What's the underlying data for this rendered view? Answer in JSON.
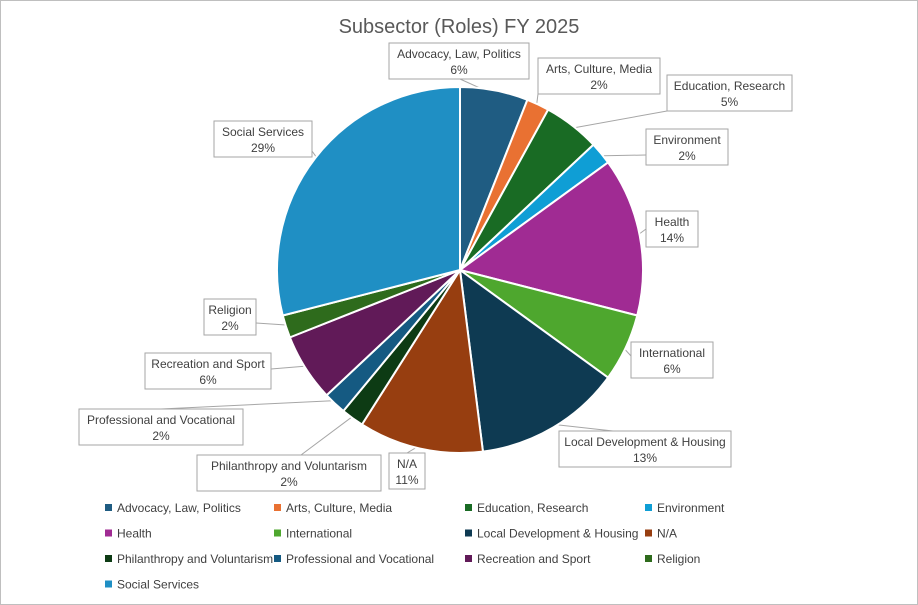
{
  "chart_data": {
    "type": "pie",
    "title": "Subsector (Roles) FY 2025",
    "legend_position": "bottom",
    "slices": [
      {
        "label": "Advocacy, Law, Politics",
        "value": 6,
        "value_label": "6%",
        "color": "#1f5c82"
      },
      {
        "label": "Arts, Culture, Media",
        "value": 2,
        "value_label": "2%",
        "color": "#e97132"
      },
      {
        "label": "Education, Research",
        "value": 5,
        "value_label": "5%",
        "color": "#196b24"
      },
      {
        "label": "Environment",
        "value": 2,
        "value_label": "2%",
        "color": "#0f9ed5"
      },
      {
        "label": "Health",
        "value": 14,
        "value_label": "14%",
        "color": "#a02b93"
      },
      {
        "label": "International",
        "value": 6,
        "value_label": "6%",
        "color": "#4ea72e"
      },
      {
        "label": "Local Development & Housing",
        "value": 13,
        "value_label": "13%",
        "color": "#0e3a52"
      },
      {
        "label": "N/A",
        "value": 11,
        "value_label": "11%",
        "color": "#973e10"
      },
      {
        "label": "Philanthropy and Voluntarism",
        "value": 2,
        "value_label": "2%",
        "color": "#0d3b14"
      },
      {
        "label": "Professional and Vocational",
        "value": 2,
        "value_label": "2%",
        "color": "#155a82"
      },
      {
        "label": "Recreation and Sport",
        "value": 6,
        "value_label": "6%",
        "color": "#611a58"
      },
      {
        "label": "Religion",
        "value": 2,
        "value_label": "2%",
        "color": "#2e6b1c"
      },
      {
        "label": "Social Services",
        "value": 29,
        "value_label": "29%",
        "color": "#1f8fc4"
      }
    ]
  }
}
